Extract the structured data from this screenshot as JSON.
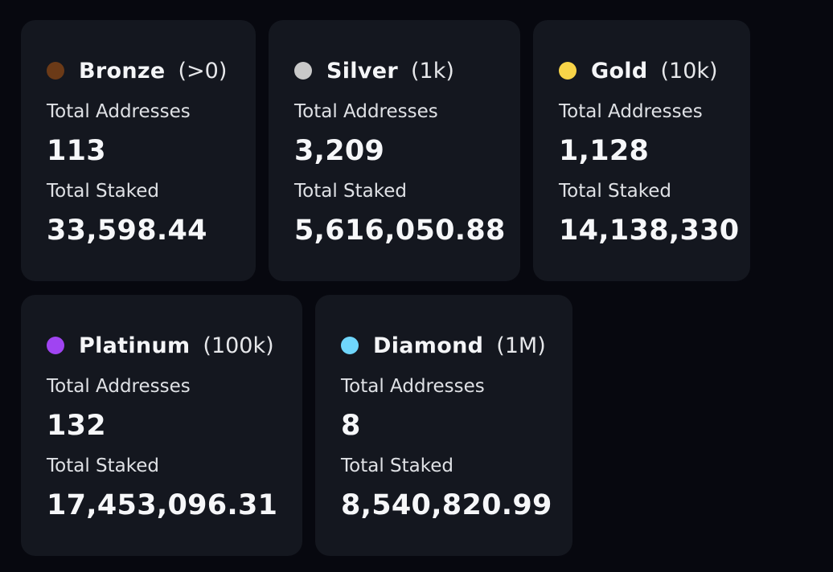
{
  "labels": {
    "total_addresses": "Total Addresses",
    "total_staked": "Total Staked"
  },
  "tiers": [
    {
      "name": "Bronze",
      "threshold": "(>0)",
      "color": "#6b3a17",
      "total_addresses": "113",
      "total_staked": "33,598.44"
    },
    {
      "name": "Silver",
      "threshold": "(1k)",
      "color": "#c9c9c9",
      "total_addresses": "3,209",
      "total_staked": "5,616,050.88"
    },
    {
      "name": "Gold",
      "threshold": "(10k)",
      "color": "#f8d448",
      "total_addresses": "1,128",
      "total_staked": "14,138,330"
    },
    {
      "name": "Platinum",
      "threshold": "(100k)",
      "color": "#a044f2",
      "total_addresses": "132",
      "total_staked": "17,453,096.31"
    },
    {
      "name": "Diamond",
      "threshold": "(1M)",
      "color": "#6fd6fb",
      "total_addresses": "8",
      "total_staked": "8,540,820.99"
    }
  ]
}
